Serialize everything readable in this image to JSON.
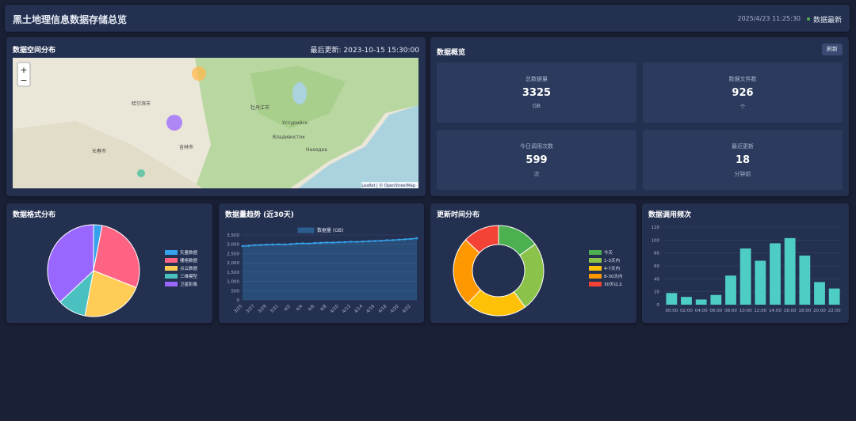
{
  "header": {
    "title": "黑土地理信息数据存储总览",
    "time": "2025/4/23 11:25:30",
    "status": "数据最新"
  },
  "map": {
    "title": "数据空间分布",
    "updated": "最后更新: 2023-10-15 15:30:00",
    "zoom_in": "+",
    "zoom_out": "−",
    "attribution": "Leaflet | © OpenStreetMap",
    "labels": [
      "哈尔滨市",
      "牡丹江市",
      "长春市",
      "吉林市",
      "Владивосток",
      "Уссурийск",
      "Находка"
    ]
  },
  "overview": {
    "title": "数据概览",
    "button": "刷新",
    "cards": [
      {
        "label": "总数据量",
        "value": 3325,
        "unit": "GB"
      },
      {
        "label": "数据文件数",
        "value": 926,
        "unit": "个"
      },
      {
        "label": "今日调用次数",
        "value": 599,
        "unit": "次"
      },
      {
        "label": "最近更新",
        "value": 18,
        "unit": "分钟前"
      }
    ]
  },
  "chart_data": [
    {
      "type": "pie",
      "title": "数据格式分布",
      "categories": [
        "矢量数据",
        "栅格数据",
        "点云数据",
        "三维模型",
        "卫星影像"
      ],
      "values": [
        3,
        28,
        22,
        10,
        37
      ],
      "colors": [
        "#36a2eb",
        "#ff6384",
        "#ffcd56",
        "#4bc0c0",
        "#9966ff"
      ]
    },
    {
      "type": "line",
      "title": "数据量趋势 (近30天)",
      "categories": [
        "3/25",
        null,
        "3/27",
        null,
        "3/29",
        null,
        "3/31",
        null,
        "4/2",
        null,
        "4/4",
        null,
        "4/6",
        null,
        "4/8",
        null,
        "4/10",
        null,
        "4/12",
        null,
        "4/14",
        null,
        "4/16",
        null,
        "4/18",
        null,
        "4/20",
        null,
        "4/22",
        null
      ],
      "series": [
        {
          "name": "数据量 (GB)",
          "color": "#36a2eb",
          "values": [
            2900,
            2920,
            2950,
            2960,
            2980,
            2990,
            3000,
            2990,
            3010,
            3040,
            3050,
            3040,
            3070,
            3080,
            3100,
            3090,
            3110,
            3120,
            3140,
            3130,
            3150,
            3170,
            3180,
            3190,
            3220,
            3230,
            3250,
            3270,
            3290,
            3325
          ]
        }
      ],
      "ylim": [
        0,
        3500
      ],
      "yticks": [
        0,
        500,
        {
          "value": 1000,
          "label": "1,000"
        },
        {
          "value": 1500,
          "label": "1,500"
        },
        {
          "value": 2000,
          "label": "2,000"
        },
        {
          "value": 2500,
          "label": "2,500"
        },
        {
          "value": 3000,
          "label": "3,000"
        },
        {
          "value": 3500,
          "label": "3,500"
        }
      ],
      "grid": true
    },
    {
      "type": "doughnut",
      "title": "更新时间分布",
      "categories": [
        "今天",
        "1-3天内",
        "4-7天内",
        "8-30天内",
        "30天以上"
      ],
      "values": [
        15,
        25,
        22,
        25,
        13
      ],
      "colors": [
        "#4caf50",
        "#8bc34a",
        "#ffc107",
        "#ff9800",
        "#f44336"
      ]
    },
    {
      "type": "bar",
      "title": "数据调用频次",
      "categories": [
        "00:00",
        "02:00",
        "04:00",
        "06:00",
        "08:00",
        "10:00",
        "12:00",
        "14:00",
        "16:00",
        "18:00",
        "20:00",
        "22:00"
      ],
      "values": [
        18,
        12,
        8,
        15,
        45,
        87,
        68,
        95,
        103,
        76,
        35,
        25
      ],
      "color": "#4ecdc4",
      "ylim": [
        0,
        120
      ],
      "yticks": [
        0,
        20,
        40,
        60,
        80,
        100,
        120
      ],
      "grid": true
    }
  ]
}
